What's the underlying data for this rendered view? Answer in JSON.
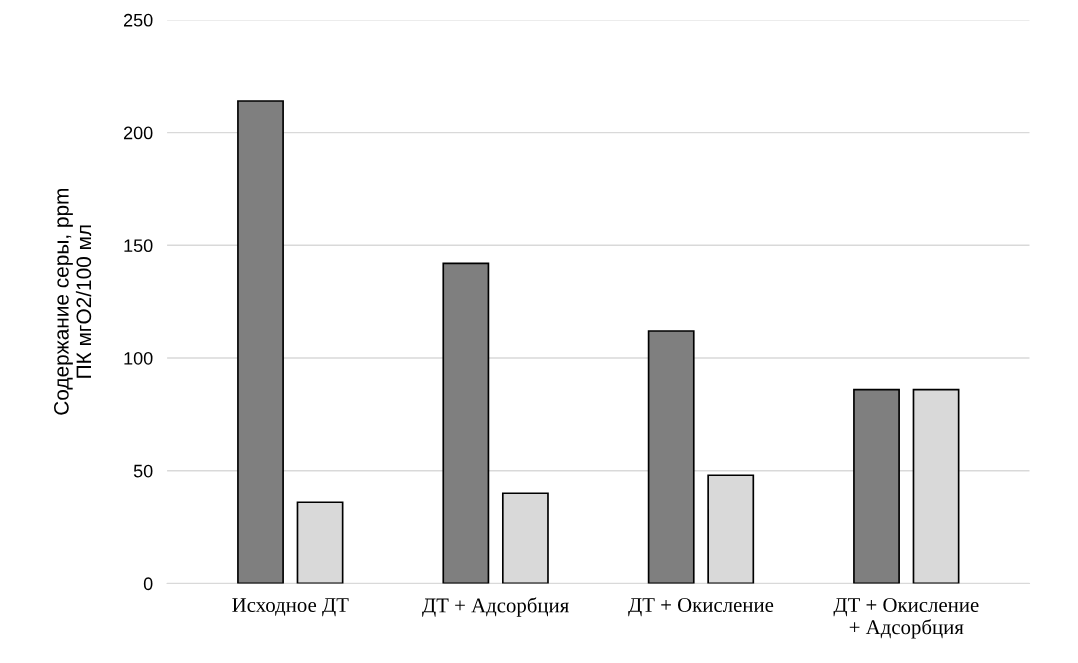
{
  "chart_data": {
    "type": "bar",
    "ylabel": "Содержание серы, ppm\nПК мгО2/100 мл",
    "categories": [
      "Исходное ДТ",
      "ДТ + Адсорбция",
      "ДТ + Окисление",
      "ДТ + Окисление\n+ Адсорбция"
    ],
    "series": [
      {
        "color": "#7f7f7f",
        "values": [
          214,
          142,
          112,
          86
        ]
      },
      {
        "color": "#d9d9d9",
        "values": [
          36,
          40,
          48,
          86
        ]
      }
    ],
    "ylim": [
      0,
      250
    ],
    "yticks": [
      0,
      50,
      100,
      150,
      200,
      250
    ],
    "grid": "y",
    "legend": false
  }
}
